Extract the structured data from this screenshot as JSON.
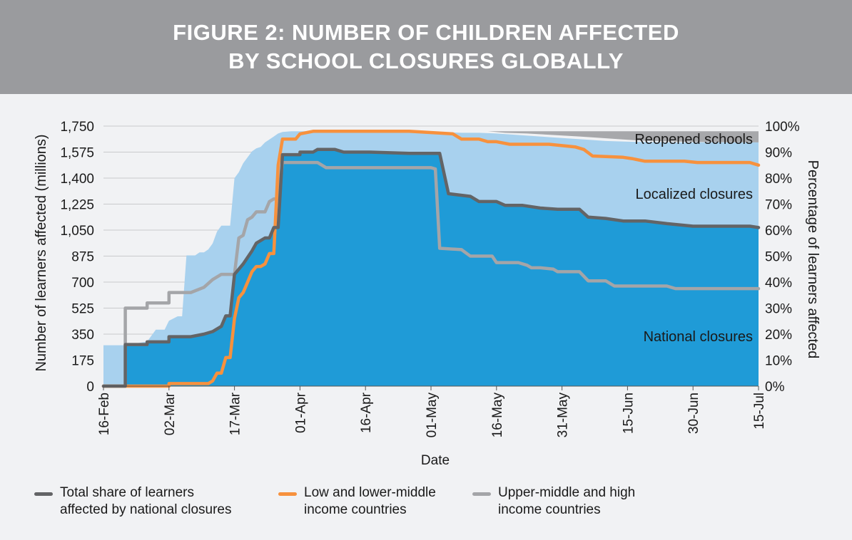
{
  "header": {
    "title_line1": "FIGURE 2: NUMBER OF CHILDREN AFFECTED",
    "title_line2": "BY SCHOOL CLOSURES GLOBALLY"
  },
  "chart_data": {
    "type": "area",
    "xlabel": "Date",
    "ylabel": "Number of learners affected (millions)",
    "y2label": "Percentage of learners affected",
    "x_ticks": [
      "16-Feb",
      "02-Mar",
      "17-Mar",
      "01-Apr",
      "16-Apr",
      "01-May",
      "16-May",
      "31-May",
      "15-Jun",
      "30-Jun",
      "15-Jul"
    ],
    "y_ticks": [
      "0",
      "175",
      "350",
      "525",
      "700",
      "875",
      "1,050",
      "1,225",
      "1,400",
      "1,575",
      "1,750"
    ],
    "y2_ticks": [
      "0%",
      "10%",
      "20%",
      "30%",
      "40%",
      "50%",
      "60%",
      "70%",
      "80%",
      "90%",
      "100%"
    ],
    "ylim": [
      0,
      1750
    ],
    "y2lim": [
      0,
      100
    ],
    "x_days_range": [
      0,
      150
    ],
    "grid": "horizontal",
    "area_labels": {
      "reopened": "Reopened schools",
      "localized": "Localized closures",
      "national": "National closures"
    },
    "colors": {
      "reopened": "#a7a8ab",
      "localized": "#a8d1ee",
      "national": "#1f9bd7",
      "total_line": "#636466",
      "low_income_line": "#f7913d",
      "high_income_line": "#a4a5a8"
    },
    "series": [
      {
        "name": "Total share of learners affected by national closures",
        "key": "total",
        "unit": "percent",
        "points": [
          [
            0,
            0
          ],
          [
            5,
            0
          ],
          [
            5,
            16
          ],
          [
            10,
            16
          ],
          [
            10,
            17
          ],
          [
            15,
            17
          ],
          [
            15,
            19
          ],
          [
            20,
            19
          ],
          [
            23,
            20
          ],
          [
            25,
            21
          ],
          [
            27,
            23
          ],
          [
            28,
            27
          ],
          [
            29,
            27
          ],
          [
            30,
            43
          ],
          [
            32,
            47
          ],
          [
            34,
            52
          ],
          [
            35,
            55
          ],
          [
            37,
            57
          ],
          [
            38,
            57
          ],
          [
            39,
            61
          ],
          [
            40,
            61
          ],
          [
            41,
            89
          ],
          [
            45,
            89
          ],
          [
            45,
            90
          ],
          [
            48,
            90
          ],
          [
            49,
            91
          ],
          [
            53,
            91
          ],
          [
            55,
            90
          ],
          [
            61,
            90
          ],
          [
            70,
            89.5
          ],
          [
            77,
            89.5
          ],
          [
            79,
            74
          ],
          [
            84,
            73
          ],
          [
            86,
            71
          ],
          [
            90,
            71
          ],
          [
            92,
            69.5
          ],
          [
            96,
            69.5
          ],
          [
            100,
            68.5
          ],
          [
            104,
            68
          ],
          [
            109,
            68
          ],
          [
            111,
            65
          ],
          [
            115,
            64.5
          ],
          [
            119,
            63.5
          ],
          [
            124,
            63.5
          ],
          [
            129,
            62.5
          ],
          [
            135,
            61.5
          ],
          [
            148,
            61.5
          ],
          [
            150,
            61
          ]
        ]
      },
      {
        "name": "Low and lower-middle income countries",
        "key": "low",
        "unit": "percent",
        "points": [
          [
            0,
            0
          ],
          [
            15,
            0
          ],
          [
            15,
            1
          ],
          [
            24,
            1
          ],
          [
            25,
            2
          ],
          [
            26,
            5
          ],
          [
            27,
            5
          ],
          [
            28,
            11
          ],
          [
            29,
            11
          ],
          [
            30,
            26
          ],
          [
            31,
            34
          ],
          [
            32,
            36
          ],
          [
            33,
            40
          ],
          [
            34,
            44
          ],
          [
            35,
            46
          ],
          [
            36,
            46
          ],
          [
            37,
            47
          ],
          [
            38,
            51
          ],
          [
            39,
            51
          ],
          [
            40,
            85
          ],
          [
            41,
            95
          ],
          [
            44,
            95
          ],
          [
            45,
            97
          ],
          [
            48,
            98
          ],
          [
            70,
            98
          ],
          [
            80,
            97
          ],
          [
            82,
            95
          ],
          [
            86,
            95
          ],
          [
            88,
            94
          ],
          [
            90,
            94
          ],
          [
            93,
            93
          ],
          [
            102,
            93
          ],
          [
            108,
            92
          ],
          [
            110,
            91
          ],
          [
            112,
            88.5
          ],
          [
            119,
            88
          ],
          [
            121,
            87.5
          ],
          [
            124,
            86.5
          ],
          [
            133,
            86.5
          ],
          [
            136,
            86
          ],
          [
            148,
            86
          ],
          [
            150,
            85
          ]
        ]
      },
      {
        "name": "Upper-middle and high income countries",
        "key": "high",
        "unit": "percent",
        "points": [
          [
            0,
            0
          ],
          [
            5,
            0
          ],
          [
            5,
            30
          ],
          [
            10,
            30
          ],
          [
            10,
            32
          ],
          [
            15,
            32
          ],
          [
            15,
            36
          ],
          [
            20,
            36
          ],
          [
            23,
            38
          ],
          [
            25,
            41
          ],
          [
            27,
            43
          ],
          [
            30,
            43
          ],
          [
            31,
            57
          ],
          [
            32,
            58
          ],
          [
            33,
            64
          ],
          [
            34,
            65
          ],
          [
            35,
            67
          ],
          [
            37,
            67
          ],
          [
            38,
            71
          ],
          [
            39,
            72
          ],
          [
            40,
            72
          ],
          [
            41,
            86
          ],
          [
            49,
            86
          ],
          [
            51,
            84
          ],
          [
            75,
            84
          ],
          [
            76,
            83.5
          ],
          [
            77,
            53
          ],
          [
            82,
            52.5
          ],
          [
            84,
            50
          ],
          [
            89,
            50
          ],
          [
            90,
            47.5
          ],
          [
            95,
            47.5
          ],
          [
            97,
            46.5
          ],
          [
            98,
            45.5
          ],
          [
            100,
            45.5
          ],
          [
            103,
            45
          ],
          [
            104,
            44
          ],
          [
            109,
            44
          ],
          [
            111,
            40.5
          ],
          [
            115,
            40.5
          ],
          [
            117,
            38.5
          ],
          [
            129,
            38.5
          ],
          [
            131,
            37.5
          ],
          [
            150,
            37.5
          ]
        ]
      }
    ],
    "area_stack": {
      "unit": "millions",
      "national": [
        [
          0,
          0
        ],
        [
          5,
          0
        ],
        [
          5,
          270
        ],
        [
          10,
          270
        ],
        [
          10,
          300
        ],
        [
          15,
          300
        ],
        [
          15,
          330
        ],
        [
          20,
          330
        ],
        [
          23,
          350
        ],
        [
          25,
          370
        ],
        [
          27,
          400
        ],
        [
          28,
          470
        ],
        [
          29,
          470
        ],
        [
          30,
          750
        ],
        [
          32,
          820
        ],
        [
          34,
          910
        ],
        [
          35,
          960
        ],
        [
          37,
          1000
        ],
        [
          38,
          1000
        ],
        [
          39,
          1070
        ],
        [
          40,
          1070
        ],
        [
          41,
          1560
        ],
        [
          45,
          1560
        ],
        [
          45,
          1575
        ],
        [
          48,
          1575
        ],
        [
          49,
          1590
        ],
        [
          53,
          1590
        ],
        [
          55,
          1575
        ],
        [
          61,
          1575
        ],
        [
          70,
          1568
        ],
        [
          77,
          1568
        ],
        [
          79,
          1295
        ],
        [
          84,
          1280
        ],
        [
          86,
          1245
        ],
        [
          90,
          1245
        ],
        [
          92,
          1218
        ],
        [
          96,
          1218
        ],
        [
          100,
          1200
        ],
        [
          104,
          1190
        ],
        [
          109,
          1190
        ],
        [
          111,
          1140
        ],
        [
          115,
          1130
        ],
        [
          119,
          1112
        ],
        [
          124,
          1112
        ],
        [
          129,
          1095
        ],
        [
          135,
          1078
        ],
        [
          148,
          1078
        ],
        [
          150,
          1068
        ]
      ],
      "total_affected": [
        [
          0,
          275
        ],
        [
          5,
          275
        ],
        [
          10,
          300
        ],
        [
          11,
          340
        ],
        [
          12,
          380
        ],
        [
          14,
          380
        ],
        [
          15,
          440
        ],
        [
          17,
          470
        ],
        [
          18,
          470
        ],
        [
          19,
          880
        ],
        [
          21,
          880
        ],
        [
          22,
          900
        ],
        [
          23,
          900
        ],
        [
          24,
          920
        ],
        [
          25,
          960
        ],
        [
          26,
          1040
        ],
        [
          27,
          1080
        ],
        [
          29,
          1080
        ],
        [
          30,
          1400
        ],
        [
          31,
          1440
        ],
        [
          32,
          1500
        ],
        [
          33,
          1540
        ],
        [
          34,
          1580
        ],
        [
          35,
          1600
        ],
        [
          36,
          1610
        ],
        [
          37,
          1640
        ],
        [
          38,
          1660
        ],
        [
          39,
          1680
        ],
        [
          40,
          1700
        ],
        [
          41,
          1710
        ],
        [
          43,
          1715
        ],
        [
          75,
          1715
        ],
        [
          78,
          1710
        ],
        [
          82,
          1705
        ],
        [
          86,
          1705
        ],
        [
          90,
          1700
        ],
        [
          95,
          1690
        ],
        [
          100,
          1680
        ],
        [
          105,
          1670
        ],
        [
          110,
          1660
        ],
        [
          115,
          1650
        ],
        [
          120,
          1645
        ],
        [
          130,
          1640
        ],
        [
          150,
          1640
        ]
      ],
      "reopened_top": [
        [
          88,
          1715
        ],
        [
          150,
          1715
        ]
      ],
      "reopened_bottom": [
        [
          88,
          1715
        ],
        [
          92,
          1705
        ],
        [
          97,
          1700
        ],
        [
          103,
          1690
        ],
        [
          109,
          1680
        ],
        [
          113,
          1672
        ],
        [
          118,
          1662
        ],
        [
          123,
          1652
        ],
        [
          128,
          1648
        ],
        [
          136,
          1643
        ],
        [
          150,
          1640
        ]
      ]
    }
  },
  "legend": [
    {
      "line1": "Total share of learners",
      "line2": "affected by national closures",
      "color": "#636466"
    },
    {
      "line1": "Low and lower-middle",
      "line2": "income countries",
      "color": "#f7913d"
    },
    {
      "line1": "Upper-middle and high",
      "line2": "income countries",
      "color": "#a4a5a8"
    }
  ]
}
